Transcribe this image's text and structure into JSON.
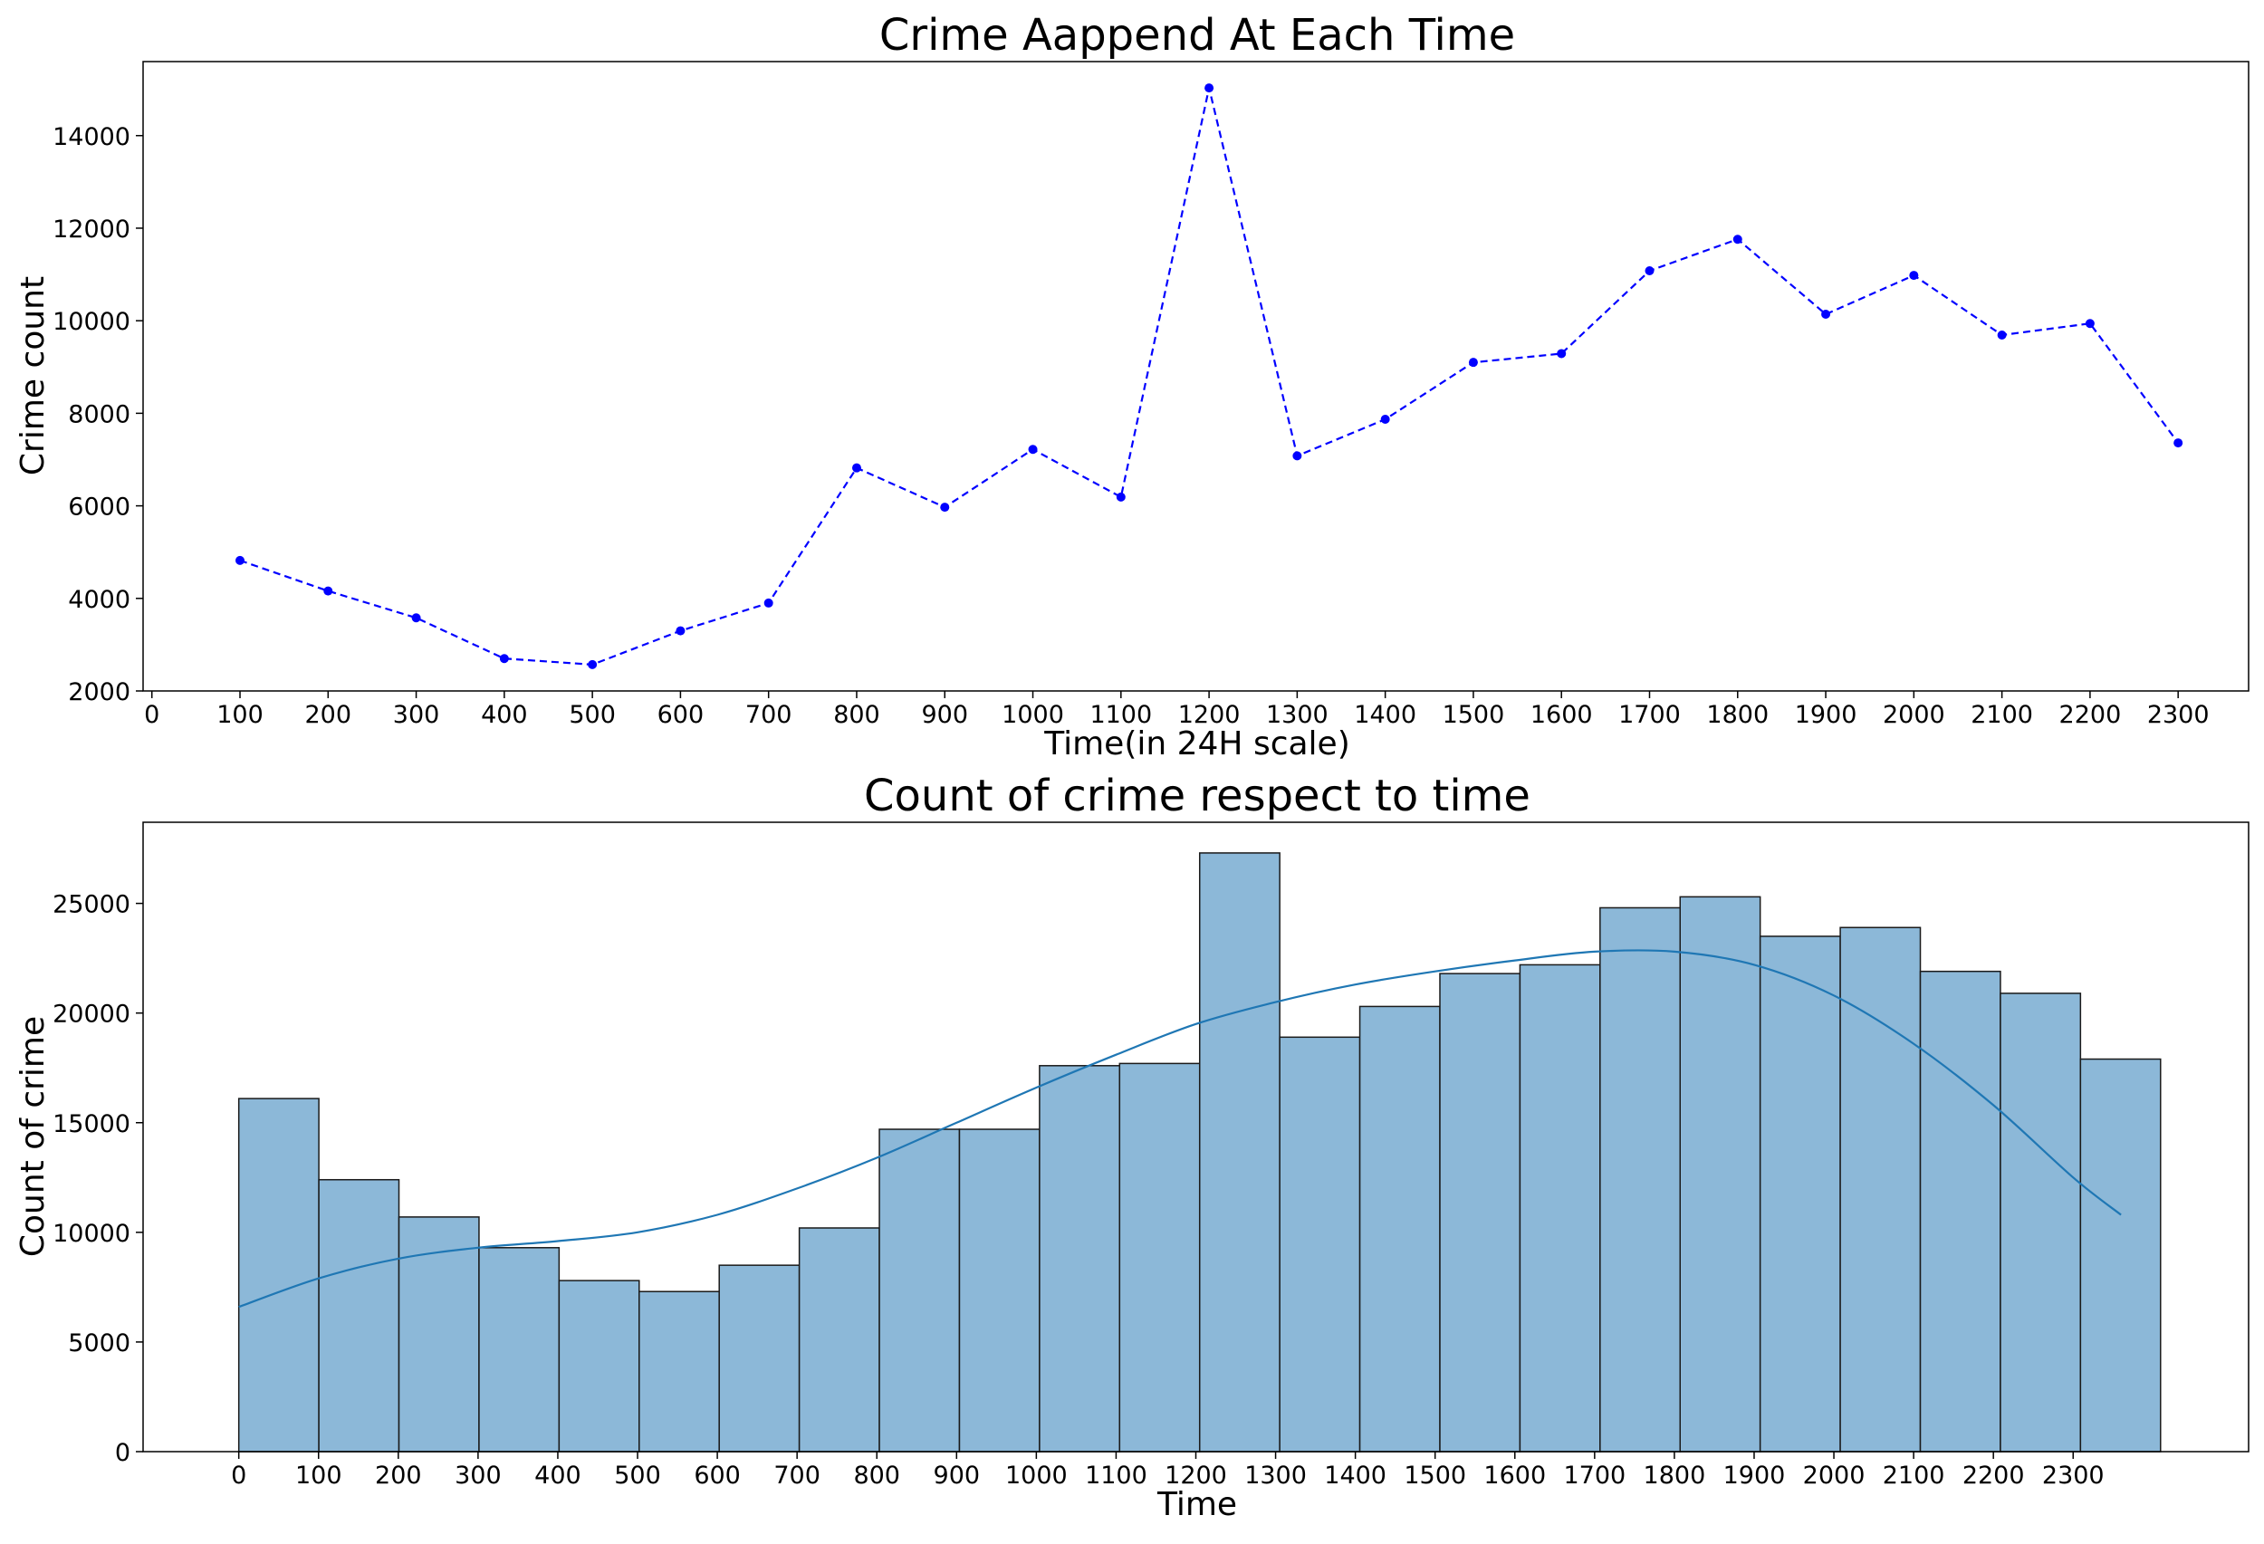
{
  "chart_data": [
    {
      "type": "line",
      "title": "Crime Aappend At Each Time",
      "xlabel": "Time(in 24H scale)",
      "ylabel": "Crime count",
      "xlim": [
        -10,
        2380
      ],
      "ylim": [
        2000,
        15600
      ],
      "x_ticks": [
        0,
        100,
        200,
        300,
        400,
        500,
        600,
        700,
        800,
        900,
        1000,
        1100,
        1200,
        1300,
        1400,
        1500,
        1600,
        1700,
        1800,
        1900,
        2000,
        2100,
        2200,
        2300
      ],
      "y_ticks": [
        2000,
        4000,
        6000,
        8000,
        10000,
        12000,
        14000
      ],
      "line_style": "dashed",
      "marker": "circle",
      "color": "#0000ff",
      "grid": false,
      "x": [
        100,
        200,
        300,
        400,
        500,
        600,
        700,
        800,
        900,
        1000,
        1100,
        1200,
        1300,
        1400,
        1500,
        1600,
        1700,
        1800,
        1900,
        2000,
        2100,
        2200,
        2300
      ],
      "values": [
        4820,
        4160,
        3580,
        2700,
        2570,
        3300,
        3900,
        6820,
        5970,
        7220,
        6190,
        15030,
        7080,
        7870,
        9100,
        9290,
        11080,
        11760,
        10140,
        10980,
        9690,
        9940,
        7360
      ]
    },
    {
      "type": "bar",
      "subtype": "histogram_with_kde",
      "title": "Count of crime respect to time",
      "xlabel": "Time",
      "ylabel": "Count of crime",
      "xlim": [
        -120,
        2520
      ],
      "ylim": [
        0,
        28700
      ],
      "x_ticks": [
        0,
        100,
        200,
        300,
        400,
        500,
        600,
        700,
        800,
        900,
        1000,
        1100,
        1200,
        1300,
        1400,
        1500,
        1600,
        1700,
        1800,
        1900,
        2000,
        2100,
        2200,
        2300
      ],
      "y_ticks": [
        0,
        5000,
        10000,
        15000,
        20000,
        25000
      ],
      "bar_color": "#8cb8d8",
      "edge_color": "#1a1a1a",
      "kde_color": "#1f77b4",
      "grid": false,
      "bin_width": 100.4,
      "bin_start": 0,
      "values": [
        16100,
        12400,
        10700,
        9300,
        7800,
        7300,
        8500,
        10200,
        14700,
        14700,
        17600,
        17700,
        27300,
        18900,
        20300,
        21800,
        22200,
        24800,
        25300,
        23500,
        23900,
        21900,
        20900,
        17900
      ],
      "kde": {
        "x": [
          0,
          100,
          200,
          300,
          400,
          500,
          600,
          700,
          800,
          900,
          1000,
          1100,
          1200,
          1300,
          1400,
          1500,
          1600,
          1700,
          1800,
          1900,
          2000,
          2100,
          2200,
          2300,
          2360
        ],
        "y": [
          6600,
          7900,
          8800,
          9300,
          9600,
          10000,
          10800,
          12000,
          13400,
          15000,
          16600,
          18100,
          19500,
          20500,
          21300,
          21900,
          22400,
          22800,
          22800,
          22200,
          20800,
          18600,
          15800,
          12500,
          10800
        ]
      }
    }
  ]
}
